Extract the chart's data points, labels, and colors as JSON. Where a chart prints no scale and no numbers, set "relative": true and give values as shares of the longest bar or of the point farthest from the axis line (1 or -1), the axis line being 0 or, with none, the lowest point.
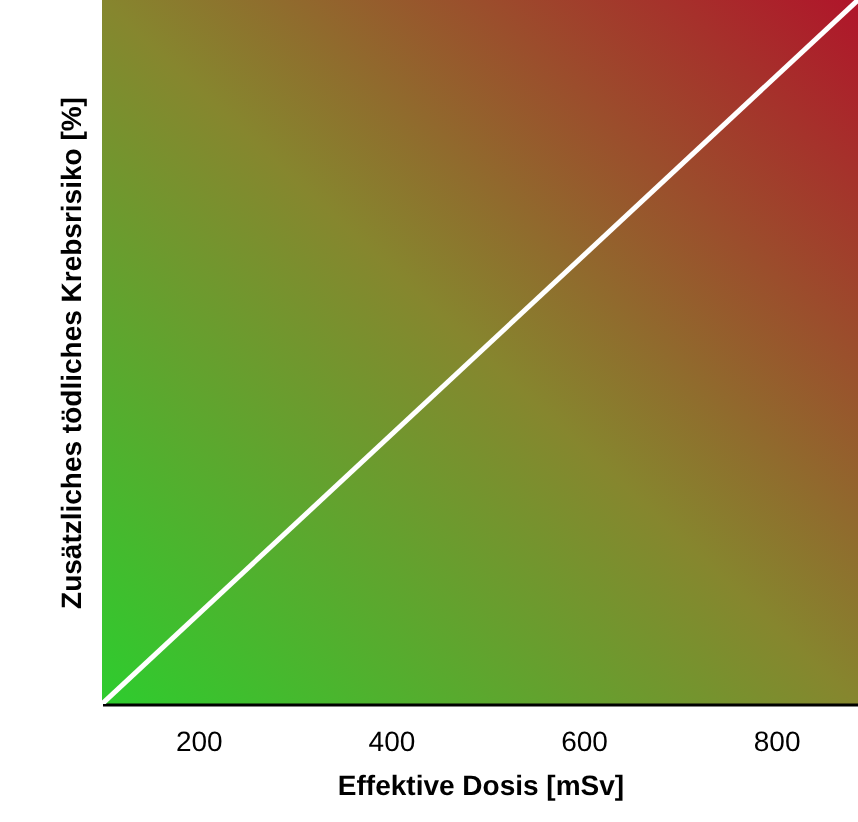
{
  "chart_data": {
    "type": "line",
    "xlabel": "Effektive Dosis [mSv]",
    "ylabel": "Zusätzliches tödliches Krebsrisiko [%]",
    "relative": true,
    "x": [
      100,
      885
    ],
    "xlim": [
      100,
      885
    ],
    "xticks": [
      200,
      400,
      600,
      800
    ],
    "series": [
      {
        "color": "#ffffff",
        "values": [
          0,
          1
        ]
      }
    ],
    "grid": false
  }
}
